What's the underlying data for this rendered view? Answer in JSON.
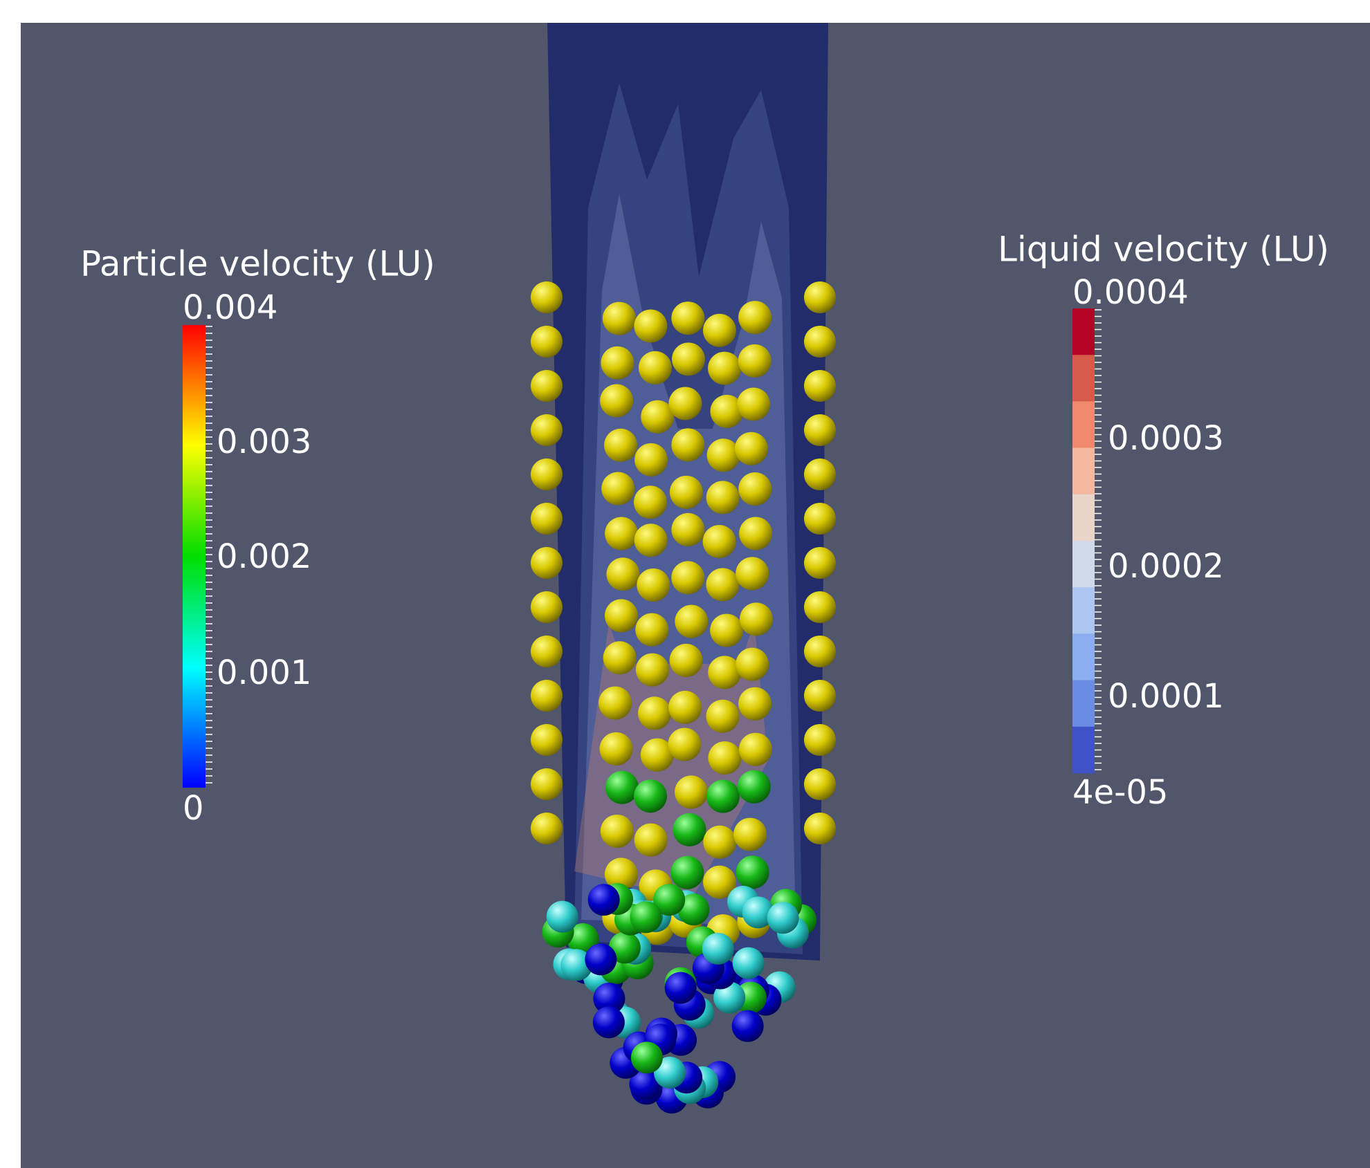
{
  "legends": [
    {
      "title": "Particle velocity (LU)",
      "labels": [
        "0.004",
        "0.003",
        "0.002",
        "0.001",
        "0"
      ]
    },
    {
      "title": "Liquid velocity (LU)",
      "labels": [
        "0.0004",
        "0.0003",
        "0.0002",
        "0.0001",
        "4e-05"
      ]
    }
  ]
}
